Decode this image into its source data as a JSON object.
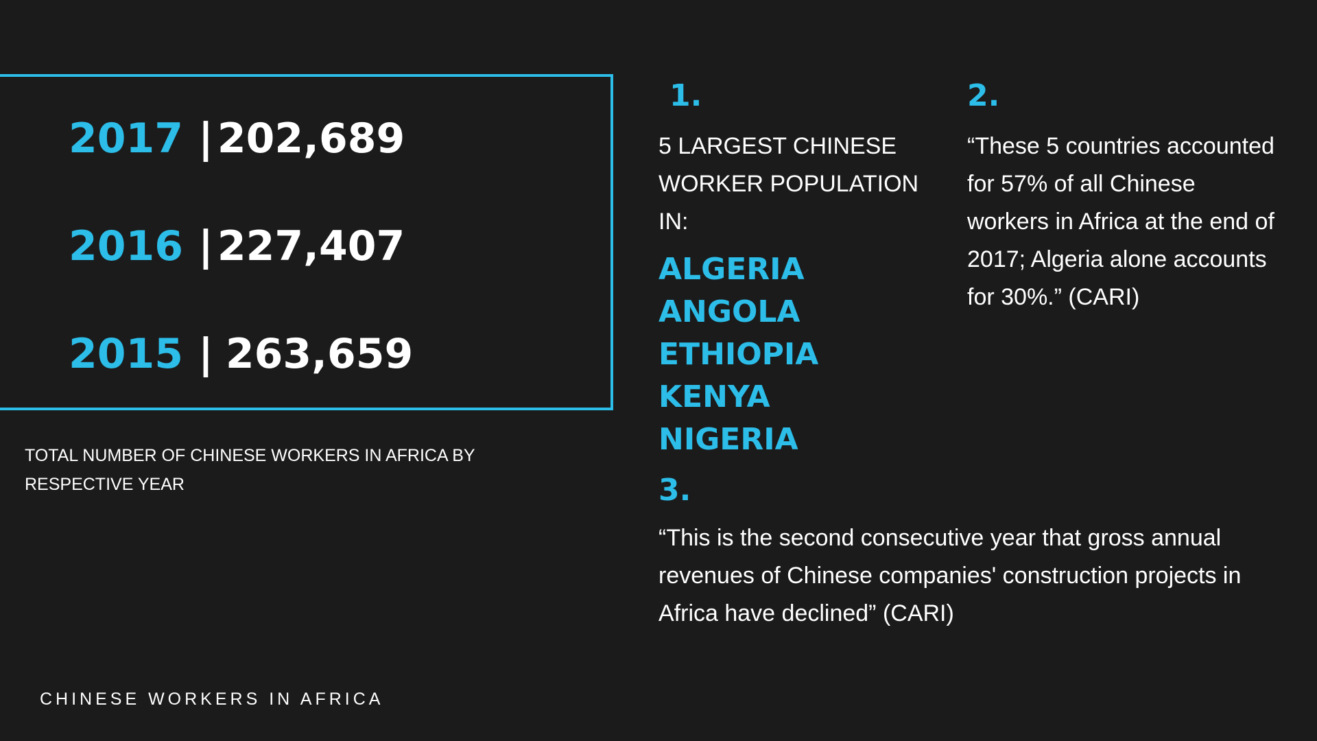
{
  "stats": [
    {
      "year": "2017",
      "separator": "|",
      "value": "202,689"
    },
    {
      "year": "2016",
      "separator": "|",
      "value": "227,407"
    },
    {
      "year": "2015",
      "separator": "|",
      "value": "263,659"
    }
  ],
  "stats_caption": "TOTAL NUMBER OF CHINESE WORKERS IN AFRICA BY RESPECTIVE YEAR",
  "section1": {
    "number": "1.",
    "heading": "5 LARGEST CHINESE WORKER POPULATION IN:",
    "countries": [
      "ALGERIA",
      "ANGOLA",
      "ETHIOPIA",
      "KENYA",
      "NIGERIA"
    ]
  },
  "section2": {
    "number": "2.",
    "quote": " “These 5 countries accounted for 57% of all Chinese workers in Africa at the end of 2017; Algeria alone accounts for 30%.” (CARI)"
  },
  "section3": {
    "number": "3.",
    "quote": "“This is the second consecutive year that gross annual revenues of Chinese companies' construction projects in Africa have declined” (CARI)"
  },
  "footer_title": "CHINESE WORKERS IN AFRICA",
  "colors": {
    "background": "#1b1b1c",
    "accent": "#2cbde8",
    "text": "#ffffff"
  }
}
